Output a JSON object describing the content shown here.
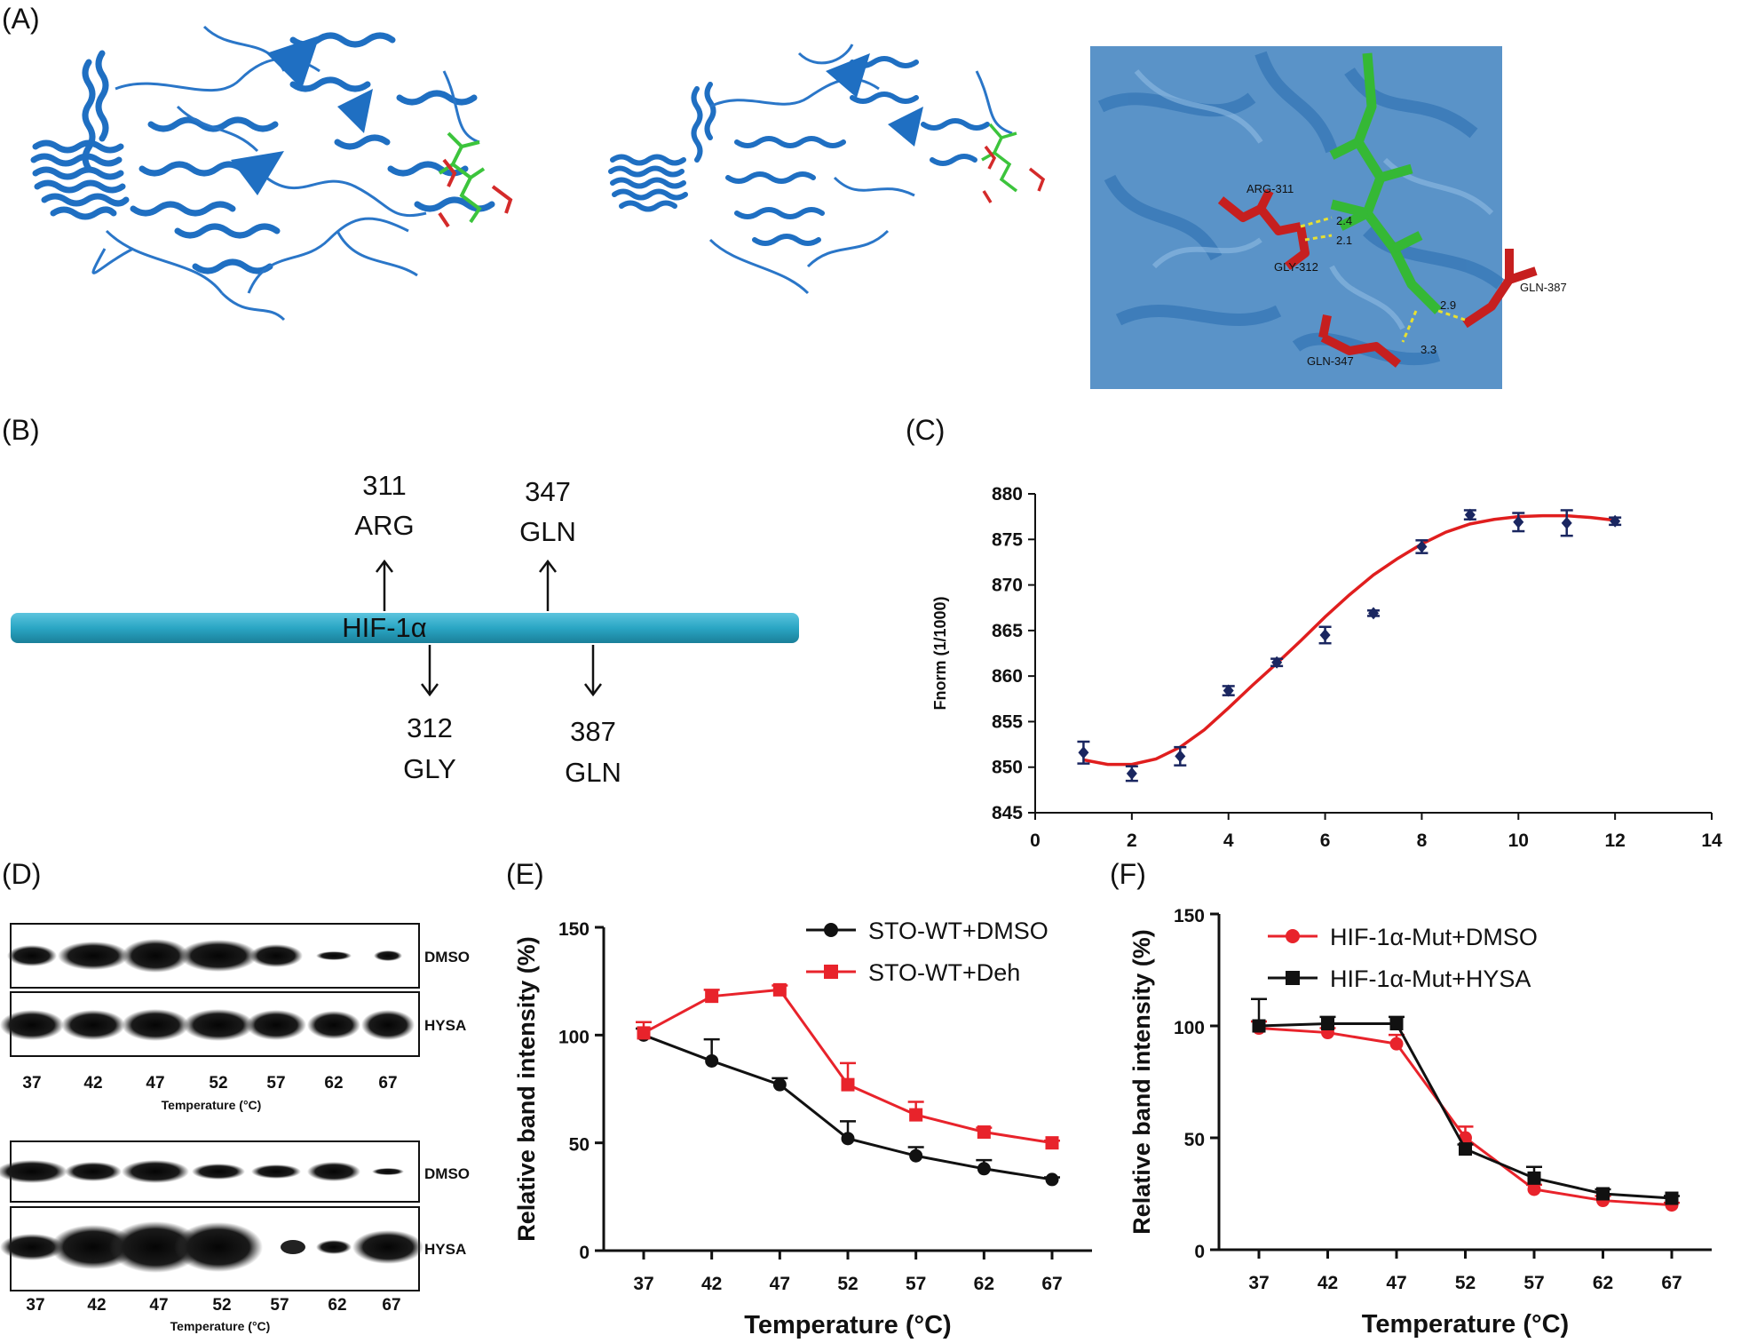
{
  "panels": {
    "A": "(A)",
    "B": "(B)",
    "C": "(C)",
    "D": "(D)",
    "E": "(E)",
    "F": "(F)"
  },
  "panelA": {
    "residues": [
      "ARG-311",
      "GLY-312",
      "GLN-347",
      "GLN-387"
    ],
    "distances": [
      "2.4",
      "2.1",
      "2.9",
      "3.3"
    ],
    "colors": {
      "protein": "#1f6fc2",
      "protein_light": "#6fa6d6",
      "ligand": "#3cc43c",
      "residue": "#d42a2a"
    }
  },
  "panelB": {
    "bar_label": "HIF-1α",
    "bar_color": "#2aa6c4",
    "up": [
      {
        "num": "311",
        "name": "ARG"
      },
      {
        "num": "347",
        "name": "GLN"
      }
    ],
    "down": [
      {
        "num": "312",
        "name": "GLY"
      },
      {
        "num": "387",
        "name": "GLN"
      }
    ]
  },
  "panelD": {
    "lanes": [
      "37",
      "42",
      "47",
      "52",
      "57",
      "62",
      "67"
    ],
    "row_labels": [
      "DMSO",
      "HYSA",
      "DMSO",
      "HYSA"
    ],
    "xtitle": "Temperature (°C)"
  },
  "chart_data": [
    {
      "id": "C",
      "type": "scatter",
      "title": "",
      "xlabel": "",
      "ylabel": "Fnorm (1/1000)",
      "xlim": [
        0,
        14
      ],
      "ylim": [
        845,
        880
      ],
      "xticks": [
        0,
        2,
        4,
        6,
        8,
        10,
        12,
        14
      ],
      "yticks": [
        845,
        850,
        855,
        860,
        865,
        870,
        875,
        880
      ],
      "points": [
        {
          "x": 1,
          "y": 851.6,
          "err": 1.2
        },
        {
          "x": 2,
          "y": 849.3,
          "err": 0.8
        },
        {
          "x": 3,
          "y": 851.2,
          "err": 1.0
        },
        {
          "x": 4,
          "y": 858.4,
          "err": 0.5
        },
        {
          "x": 5,
          "y": 861.5,
          "err": 0.4
        },
        {
          "x": 6,
          "y": 864.5,
          "err": 0.9
        },
        {
          "x": 7,
          "y": 866.9,
          "err": 0.3
        },
        {
          "x": 8,
          "y": 874.2,
          "err": 0.7
        },
        {
          "x": 9,
          "y": 877.7,
          "err": 0.5
        },
        {
          "x": 10,
          "y": 876.9,
          "err": 1.0
        },
        {
          "x": 11,
          "y": 876.8,
          "err": 1.4
        },
        {
          "x": 12,
          "y": 877.0,
          "err": 0.4
        }
      ],
      "fit": {
        "name": "fit",
        "color": "#e01e1e",
        "x": [
          1,
          1.5,
          2,
          2.5,
          3,
          3.5,
          4,
          4.5,
          5,
          5.5,
          6,
          6.5,
          7,
          7.5,
          8,
          8.5,
          9,
          9.5,
          10,
          10.5,
          11,
          11.5,
          12
        ],
        "y": [
          850.8,
          850.3,
          850.3,
          850.9,
          852.2,
          854.1,
          856.5,
          859.0,
          861.4,
          863.9,
          866.5,
          868.9,
          871.1,
          872.9,
          874.5,
          875.8,
          876.7,
          877.2,
          877.5,
          877.6,
          877.6,
          877.4,
          877.1
        ]
      },
      "point_color": "#1a2660"
    },
    {
      "id": "E",
      "type": "line",
      "xlabel": "Temperature (°C)",
      "ylabel": "Relative band intensity (%)",
      "categories": [
        "37",
        "42",
        "47",
        "52",
        "57",
        "62",
        "67"
      ],
      "ylim": [
        0,
        150
      ],
      "yticks": [
        0,
        50,
        100,
        150
      ],
      "series": [
        {
          "name": "STO-WT+DMSO",
          "color": "#111111",
          "marker": "circle",
          "values": [
            100,
            88,
            77,
            52,
            44,
            38,
            33
          ],
          "err": [
            3,
            10,
            3,
            8,
            4,
            4,
            1
          ]
        },
        {
          "name": "STO-WT+Deh",
          "color": "#e8232b",
          "marker": "square",
          "values": [
            101,
            118,
            121,
            77,
            63,
            55,
            50
          ],
          "err": [
            5,
            3,
            2,
            10,
            6,
            2,
            1
          ]
        }
      ]
    },
    {
      "id": "F",
      "type": "line",
      "xlabel": "Temperature (°C)",
      "ylabel": "Relative band intensity (%)",
      "categories": [
        "37",
        "42",
        "47",
        "52",
        "57",
        "62",
        "67"
      ],
      "ylim": [
        0,
        150
      ],
      "yticks": [
        0,
        50,
        100,
        150
      ],
      "series": [
        {
          "name": "HIF-1α-Mut+DMSO",
          "color": "#e8232b",
          "marker": "circle",
          "values": [
            99,
            97,
            92,
            50,
            27,
            22,
            20
          ],
          "err": [
            3,
            2,
            4,
            5,
            2,
            2,
            1
          ]
        },
        {
          "name": "HIF-1α-Mut+HYSA",
          "color": "#111111",
          "marker": "square",
          "values": [
            100,
            101,
            101,
            45,
            32,
            25,
            23
          ],
          "err": [
            12,
            3,
            3,
            2,
            5,
            2,
            1
          ]
        }
      ]
    }
  ]
}
